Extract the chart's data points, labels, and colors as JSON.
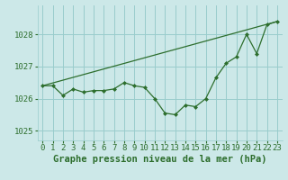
{
  "title": "Graphe pression niveau de la mer (hPa)",
  "background_color": "#cce8e8",
  "grid_color": "#99cccc",
  "line_color": "#2d6e2d",
  "marker_color": "#2d6e2d",
  "ylim": [
    1024.7,
    1028.9
  ],
  "yticks": [
    1025,
    1026,
    1027,
    1028
  ],
  "xlim": [
    -0.5,
    23.5
  ],
  "xticks": [
    0,
    1,
    2,
    3,
    4,
    5,
    6,
    7,
    8,
    9,
    10,
    11,
    12,
    13,
    14,
    15,
    16,
    17,
    18,
    19,
    20,
    21,
    22,
    23
  ],
  "series1_x": [
    0,
    1,
    2,
    3,
    4,
    5,
    6,
    7,
    8,
    9,
    10,
    11,
    12,
    13,
    14,
    15,
    16,
    17,
    18,
    19,
    20,
    21,
    22,
    23
  ],
  "series1_y": [
    1026.4,
    1026.4,
    1026.1,
    1026.3,
    1026.2,
    1026.25,
    1026.25,
    1026.3,
    1026.5,
    1026.4,
    1026.35,
    1026.0,
    1025.55,
    1025.5,
    1025.8,
    1025.75,
    1026.0,
    1026.65,
    1027.1,
    1027.3,
    1028.0,
    1027.4,
    1028.3,
    1028.4
  ],
  "series2_x": [
    0,
    23
  ],
  "series2_y": [
    1026.4,
    1028.4
  ],
  "tick_fontsize": 6.5,
  "xlabel_fontsize": 7.5
}
